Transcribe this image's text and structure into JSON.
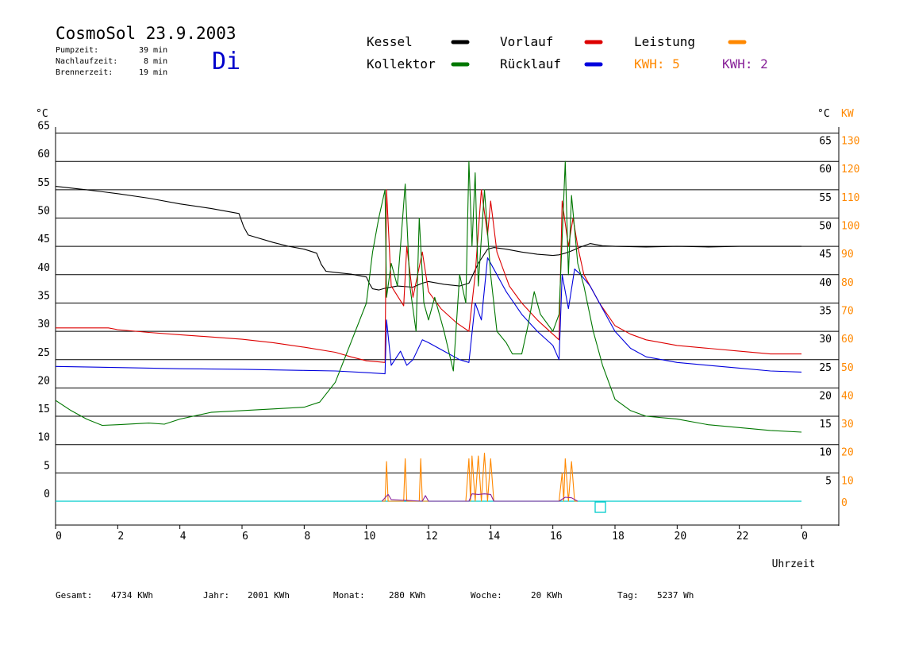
{
  "header": {
    "title": "CosmoSol 23.9.2003",
    "day": "Di",
    "stats": [
      {
        "label": "Pumpzeit:",
        "value": "39 min"
      },
      {
        "label": "Nachlaufzeit:",
        "value": "8 min"
      },
      {
        "label": "Brennerzeit:",
        "value": "19 min"
      }
    ]
  },
  "legend": {
    "kessel": {
      "label": "Kessel",
      "color": "#000000"
    },
    "vorlauf": {
      "label": "Vorlauf",
      "color": "#dd0000"
    },
    "leistung": {
      "label": "Leistung",
      "color": "#ff8800"
    },
    "kollektor": {
      "label": "Kollektor",
      "color": "#007700"
    },
    "ruecklauf": {
      "label": "Rücklauf",
      "color": "#0000dd"
    },
    "kwh1": {
      "label": "KWH: 5",
      "color": "#ff8800"
    },
    "kwh2": {
      "label": "KWH: 2",
      "color": "#882299"
    }
  },
  "footer": [
    {
      "label": "Gesamt:",
      "value": "4734 KWh"
    },
    {
      "label": "Jahr:",
      "value": "2001 KWh"
    },
    {
      "label": "Monat:",
      "value": "280 KWh"
    },
    {
      "label": "Woche:",
      "value": "20 KWh"
    },
    {
      "label": "Tag:",
      "value": "5237 Wh"
    }
  ],
  "chart_data": {
    "type": "line",
    "xlabel": "Uhrzeit",
    "ylabel_left": "°C",
    "ylabel_right_temp": "°C",
    "ylabel_right_power": "KW",
    "xlim": [
      0,
      24
    ],
    "ylim": [
      0,
      65
    ],
    "x_ticks": [
      "0",
      "2",
      "4",
      "6",
      "8",
      "10",
      "12",
      "14",
      "16",
      "18",
      "20",
      "22",
      "0"
    ],
    "y_ticks": [
      "0",
      "5",
      "10",
      "15",
      "20",
      "25",
      "30",
      "35",
      "40",
      "45",
      "50",
      "55",
      "60",
      "65"
    ],
    "y_ticks_power": [
      "0",
      "10",
      "20",
      "30",
      "40",
      "50",
      "60",
      "70",
      "80",
      "90",
      "100",
      "110",
      "120",
      "130"
    ],
    "grid": true,
    "series": [
      {
        "name": "Kessel",
        "color": "#000000",
        "x": [
          0,
          1,
          2,
          3,
          4,
          5,
          5.9,
          6.05,
          6.2,
          7,
          7.5,
          8,
          8.4,
          8.55,
          8.7,
          9,
          9.5,
          10,
          10.1,
          10.2,
          10.4,
          10.6,
          11,
          11.5,
          11.8,
          12,
          12.5,
          13,
          13.3,
          13.6,
          13.9,
          14.1,
          14.5,
          15,
          15.5,
          16,
          16.2,
          16.4,
          16.6,
          16.9,
          17.2,
          17.6,
          18,
          19,
          20,
          21,
          22,
          23,
          24
        ],
        "y": [
          55.6,
          55,
          54.3,
          53.5,
          52.5,
          51.7,
          50.8,
          48.5,
          47,
          45.7,
          45,
          44.5,
          43.8,
          41.8,
          40.6,
          40.4,
          40.1,
          39.6,
          38.4,
          37.5,
          37.3,
          37.6,
          38,
          37.8,
          38.5,
          38.8,
          38.3,
          38,
          38.5,
          42,
          44.5,
          44.8,
          44.5,
          44,
          43.6,
          43.4,
          43.5,
          43.8,
          44.2,
          44.9,
          45.5,
          45.1,
          45,
          44.9,
          45,
          44.9,
          45,
          45,
          45
        ]
      },
      {
        "name": "Vorlauf",
        "color": "#dd0000",
        "x": [
          0,
          1.7,
          2,
          3,
          4,
          5,
          6,
          7,
          8,
          9,
          9.5,
          10,
          10.4,
          10.6,
          10.65,
          10.8,
          11.2,
          11.3,
          11.5,
          11.8,
          12,
          12.4,
          12.9,
          13.3,
          13.5,
          13.7,
          13.9,
          14,
          14.2,
          14.6,
          15,
          15.5,
          16,
          16.2,
          16.3,
          16.5,
          16.65,
          16.8,
          17,
          17.5,
          18,
          18.5,
          19,
          20,
          21,
          22,
          23,
          24
        ],
        "y": [
          30.6,
          30.6,
          30.3,
          29.8,
          29.4,
          29,
          28.6,
          28,
          27.2,
          26.3,
          25.5,
          24.8,
          24.6,
          24.5,
          55,
          38,
          34.5,
          45,
          36,
          44,
          37,
          34,
          31.5,
          30,
          40,
          55,
          47,
          53,
          44,
          38,
          35,
          32,
          29.5,
          28.5,
          53,
          45,
          50,
          45,
          40,
          35,
          31,
          29.5,
          28.5,
          27.5,
          27,
          26.5,
          26,
          26
        ]
      },
      {
        "name": "Rücklauf",
        "color": "#0000dd",
        "x": [
          0,
          2,
          4,
          6,
          8,
          9,
          10,
          10.6,
          10.65,
          10.8,
          11.1,
          11.3,
          11.5,
          11.8,
          12,
          12.5,
          13,
          13.3,
          13.5,
          13.7,
          13.9,
          14.1,
          14.5,
          15,
          15.5,
          16,
          16.2,
          16.3,
          16.5,
          16.7,
          16.9,
          17.2,
          17.5,
          18,
          18.5,
          19,
          20,
          21,
          22,
          23,
          24
        ],
        "y": [
          23.8,
          23.6,
          23.4,
          23.3,
          23.1,
          23,
          22.7,
          22.5,
          32,
          24,
          26.5,
          24,
          25,
          28.5,
          28,
          26.5,
          25,
          24.5,
          35,
          32,
          43,
          41,
          37,
          33,
          30,
          27.5,
          25,
          40,
          34,
          41,
          40,
          38,
          35,
          30,
          27,
          25.5,
          24.5,
          24,
          23.5,
          23,
          22.8
        ]
      },
      {
        "name": "Kollektor",
        "color": "#007700",
        "x": [
          0,
          0.5,
          1,
          1.5,
          2,
          3,
          3.5,
          4,
          5,
          6,
          7,
          8,
          8.5,
          9,
          9.5,
          10,
          10.2,
          10.4,
          10.6,
          10.65,
          10.8,
          11,
          11.1,
          11.25,
          11.4,
          11.6,
          11.7,
          11.85,
          12,
          12.2,
          12.5,
          12.8,
          13,
          13.2,
          13.3,
          13.4,
          13.5,
          13.6,
          13.8,
          14,
          14.2,
          14.5,
          14.7,
          15,
          15.2,
          15.4,
          15.6,
          16,
          16.2,
          16.4,
          16.5,
          16.6,
          16.8,
          17,
          17.3,
          17.6,
          18,
          18.5,
          19,
          20,
          21,
          22,
          23,
          24
        ],
        "y": [
          17.8,
          16,
          14.5,
          13.4,
          13.5,
          13.8,
          13.6,
          14.5,
          15.7,
          16,
          16.3,
          16.6,
          17.5,
          21,
          28,
          35,
          44,
          50,
          55,
          36,
          42,
          38,
          45,
          56,
          38,
          30,
          50,
          35,
          32,
          36,
          30,
          23,
          40,
          35,
          60,
          45,
          58,
          38,
          55,
          40,
          30,
          28,
          26,
          26,
          31,
          37,
          33,
          30,
          33,
          60,
          40,
          54,
          42,
          38,
          30,
          24,
          18,
          16,
          15,
          14.5,
          13.5,
          13,
          12.5,
          12.2
        ]
      },
      {
        "name": "Leistung",
        "color": "#ff8800",
        "x": [
          10.5,
          10.6,
          10.65,
          10.7,
          11.2,
          11.25,
          11.3,
          11.7,
          11.75,
          11.8,
          13.2,
          13.3,
          13.35,
          13.4,
          13.5,
          13.6,
          13.7,
          13.8,
          13.9,
          14,
          14.1,
          16.2,
          16.3,
          16.35,
          16.4,
          16.5,
          16.6,
          16.7,
          16.8
        ],
        "y": [
          0,
          0,
          7,
          0,
          0,
          7.5,
          0,
          0,
          7.5,
          0,
          0,
          7.5,
          0,
          8,
          0,
          8,
          0,
          8.5,
          0,
          7.5,
          0,
          0,
          5,
          0,
          7.5,
          0,
          7,
          0,
          0
        ]
      },
      {
        "name": "KWH",
        "color": "#882299",
        "x": [
          10.5,
          10.7,
          10.8,
          11.8,
          11.9,
          12,
          13.3,
          13.4,
          13.6,
          13.8,
          14,
          14.1,
          16.2,
          16.4,
          16.6,
          16.8
        ],
        "y": [
          0,
          1.2,
          0.3,
          0,
          1,
          0,
          0,
          1.3,
          1.2,
          1.3,
          1.2,
          0,
          0,
          0.7,
          0.6,
          0
        ]
      }
    ],
    "baseline": {
      "y": 0,
      "color": "#00cccc"
    }
  }
}
